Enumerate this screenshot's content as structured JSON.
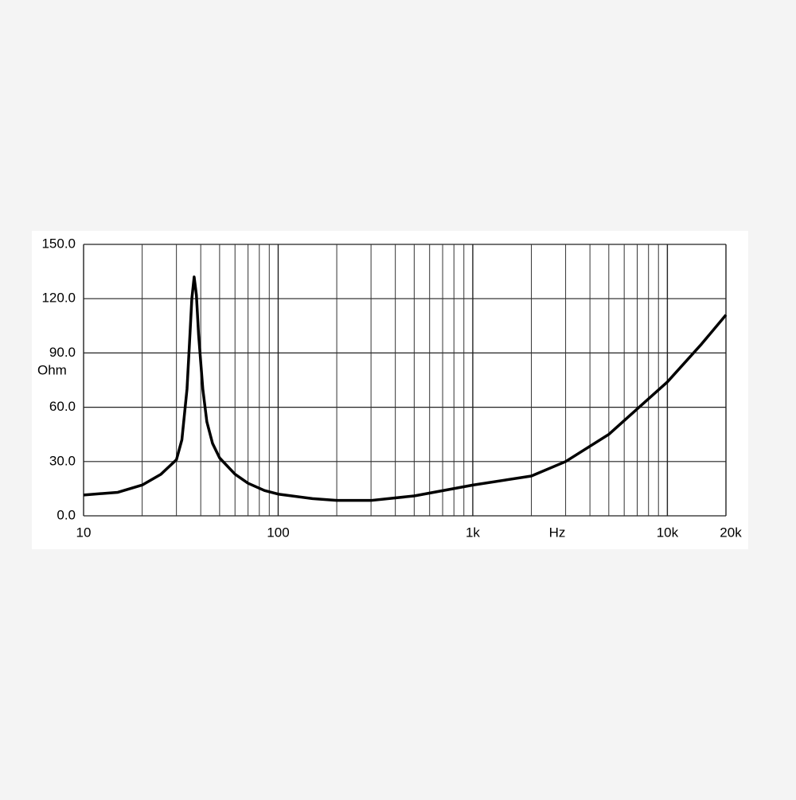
{
  "chart_data": {
    "type": "line",
    "x_label": "Hz",
    "y_label": "Ohm",
    "log_x": true,
    "grid": true,
    "color": "#000000",
    "xlim": [
      10,
      20000
    ],
    "ylim": [
      0,
      150
    ],
    "xticks": [
      10,
      100,
      {
        "value": 1000,
        "label": "1k"
      },
      {
        "value": 10000,
        "label": "10k"
      },
      {
        "value": 20000,
        "label": "20k"
      }
    ],
    "xgrid": [
      20,
      30,
      40,
      50,
      60,
      70,
      80,
      90,
      200,
      300,
      400,
      500,
      600,
      700,
      800,
      900,
      2000,
      3000,
      4000,
      5000,
      6000,
      7000,
      8000,
      9000
    ],
    "yticks": [
      {
        "value": 0,
        "label": "0.0"
      },
      {
        "value": 30,
        "label": "30.0"
      },
      {
        "value": 60,
        "label": "60.0"
      },
      {
        "value": 90,
        "label": "90.0"
      },
      {
        "value": 120,
        "label": "120.0"
      },
      {
        "value": 150,
        "label": "150.0"
      }
    ],
    "x": [
      10,
      15,
      20,
      25,
      30,
      32,
      34,
      35,
      36,
      37,
      38,
      39,
      41,
      43,
      46,
      50,
      60,
      70,
      85,
      100,
      150,
      200,
      300,
      500,
      1000,
      2000,
      3000,
      5000,
      10000,
      15000,
      20000
    ],
    "values": [
      11.5,
      13,
      17,
      23,
      31,
      42,
      70,
      95,
      120,
      132,
      122,
      100,
      70,
      52,
      40,
      32,
      23,
      18,
      14,
      12,
      9.5,
      8.5,
      8.5,
      11,
      17,
      22,
      30,
      45,
      74,
      95,
      111
    ]
  }
}
